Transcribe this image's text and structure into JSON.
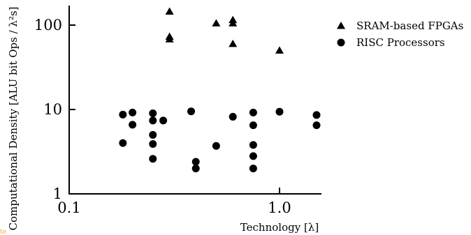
{
  "chart_data": {
    "type": "scatter",
    "title": "",
    "xlabel": "Technology [λ]",
    "ylabel": "Computational Density [ALU bit Ops / λ²s]",
    "xscale": "log",
    "yscale": "log",
    "xlim": [
      0.1,
      1.5
    ],
    "ylim": [
      1,
      200
    ],
    "x_ticks": [
      "0.1",
      "1.0"
    ],
    "y_ticks": [
      "1",
      "10",
      "100"
    ],
    "grid": false,
    "legend_position": "top-right",
    "series": [
      {
        "name": "SRAM-based FPGAs",
        "marker": "triangle",
        "color": "#000000",
        "points": [
          {
            "x": 0.3,
            "y": 145
          },
          {
            "x": 0.3,
            "y": 73
          },
          {
            "x": 0.3,
            "y": 68
          },
          {
            "x": 0.5,
            "y": 105
          },
          {
            "x": 0.6,
            "y": 115
          },
          {
            "x": 0.6,
            "y": 105
          },
          {
            "x": 0.6,
            "y": 60
          },
          {
            "x": 1.0,
            "y": 50
          }
        ]
      },
      {
        "name": "RISC Processors",
        "marker": "circle",
        "color": "#000000",
        "points": [
          {
            "x": 0.18,
            "y": 8.7
          },
          {
            "x": 0.18,
            "y": 4.0
          },
          {
            "x": 0.2,
            "y": 9.2
          },
          {
            "x": 0.2,
            "y": 6.6
          },
          {
            "x": 0.25,
            "y": 9.0
          },
          {
            "x": 0.25,
            "y": 7.4
          },
          {
            "x": 0.25,
            "y": 5.0
          },
          {
            "x": 0.25,
            "y": 3.9
          },
          {
            "x": 0.25,
            "y": 2.6
          },
          {
            "x": 0.28,
            "y": 7.4
          },
          {
            "x": 0.38,
            "y": 9.5
          },
          {
            "x": 0.4,
            "y": 2.4
          },
          {
            "x": 0.4,
            "y": 2.0
          },
          {
            "x": 0.5,
            "y": 3.7
          },
          {
            "x": 0.6,
            "y": 8.2
          },
          {
            "x": 0.75,
            "y": 9.2
          },
          {
            "x": 0.75,
            "y": 6.5
          },
          {
            "x": 0.75,
            "y": 3.8
          },
          {
            "x": 0.75,
            "y": 2.8
          },
          {
            "x": 0.75,
            "y": 2.0
          },
          {
            "x": 1.0,
            "y": 9.4
          },
          {
            "x": 1.5,
            "y": 8.6
          },
          {
            "x": 1.5,
            "y": 6.5
          }
        ]
      }
    ]
  },
  "page": {
    "corner_mark": "te",
    "corner_mark_color": "#f5a04a"
  }
}
